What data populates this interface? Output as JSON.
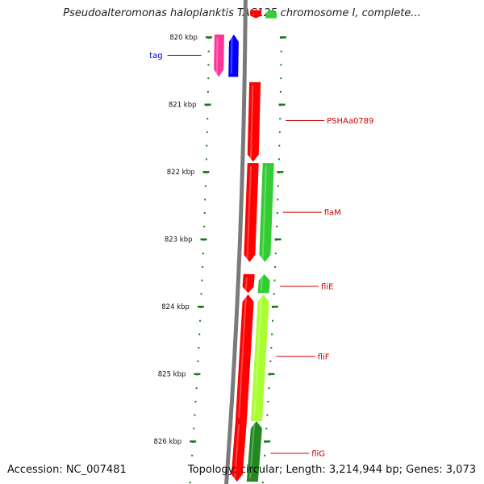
{
  "title": "Pseudoalteromonas haloplanktis TAC125 chromosome I, complete...",
  "footer": {
    "accession": "Accession: NC_007481",
    "topology": "Topology: circular; Length: 3,214,944 bp; Genes: 3,073"
  },
  "colors": {
    "backbone": "#7a7a7a",
    "ticks": "#1a7a1a",
    "gene_label": "#cc0000",
    "trna_label": "#0000cc",
    "red_gene": "#ff0000",
    "green_gene": "#33cc33",
    "lime_gene": "#aaff33",
    "dark_green_gene": "#228822",
    "magenta_gene": "#ff3399",
    "blue_gene": "#0000ff"
  },
  "ticks": [
    {
      "label": "820 kbp",
      "kbp": 820
    },
    {
      "label": "821 kbp",
      "kbp": 821
    },
    {
      "label": "822 kbp",
      "kbp": 822
    },
    {
      "label": "823 kbp",
      "kbp": 823
    },
    {
      "label": "824 kbp",
      "kbp": 824
    },
    {
      "label": "825 kbp",
      "kbp": 825
    },
    {
      "label": "826 kbp",
      "kbp": 826
    }
  ],
  "genes": [
    {
      "kind": "magenta",
      "strand": "-",
      "start_kbp": 819.96,
      "end_kbp": 820.59
    },
    {
      "kind": "blue",
      "strand": "+",
      "start_kbp": 819.96,
      "end_kbp": 820.59
    },
    {
      "kind": "red",
      "strand": "-",
      "start_kbp": 819.6,
      "end_kbp": 819.72
    },
    {
      "kind": "green",
      "strand": "+",
      "start_kbp": 819.6,
      "end_kbp": 819.72
    },
    {
      "kind": "red",
      "strand": "-",
      "start_kbp": 820.67,
      "end_kbp": 821.85
    },
    {
      "kind": "red",
      "strand": "-",
      "start_kbp": 821.87,
      "end_kbp": 823.34
    },
    {
      "kind": "green",
      "strand": "-",
      "start_kbp": 821.87,
      "end_kbp": 823.34
    },
    {
      "kind": "red",
      "strand": "-",
      "start_kbp": 823.52,
      "end_kbp": 823.8
    },
    {
      "kind": "green",
      "strand": "+",
      "start_kbp": 823.52,
      "end_kbp": 823.8
    },
    {
      "kind": "red",
      "strand": "+",
      "start_kbp": 823.82,
      "end_kbp": 825.7
    },
    {
      "kind": "lime",
      "strand": "+",
      "start_kbp": 823.82,
      "end_kbp": 825.7
    },
    {
      "kind": "red",
      "strand": "-",
      "start_kbp": 825.7,
      "end_kbp": 826.6
    },
    {
      "kind": "dark_green",
      "strand": "+",
      "start_kbp": 825.7,
      "end_kbp": 826.6
    }
  ],
  "labels": [
    {
      "text": "tag",
      "kbp": 820.27,
      "side": "left",
      "kind": "trna"
    },
    {
      "text": "PSHAa0789",
      "kbp": 821.24,
      "side": "right",
      "kind": "gene"
    },
    {
      "text": "flaM",
      "kbp": 822.6,
      "side": "right",
      "kind": "gene"
    },
    {
      "text": "fliE",
      "kbp": 823.7,
      "side": "right",
      "kind": "gene"
    },
    {
      "text": "fliF",
      "kbp": 824.74,
      "side": "right",
      "kind": "gene"
    },
    {
      "text": "fliG",
      "kbp": 826.18,
      "side": "right",
      "kind": "gene"
    }
  ]
}
